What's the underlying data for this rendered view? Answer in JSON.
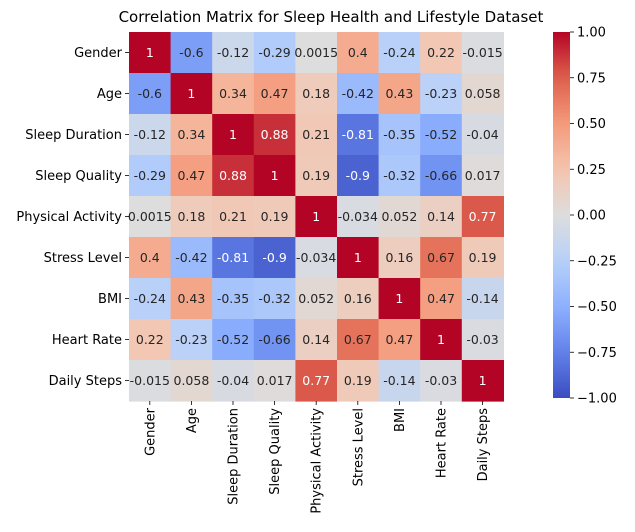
{
  "chart_data": {
    "type": "heatmap",
    "title": "Correlation Matrix for Sleep Health and Lifestyle Dataset",
    "labels": [
      "Gender",
      "Age",
      "Sleep Duration",
      "Sleep Quality",
      "Physical Activity",
      "Stress Level",
      "BMI",
      "Heart Rate",
      "Daily Steps"
    ],
    "values": [
      [
        1,
        -0.6,
        -0.12,
        -0.29,
        0.0015,
        0.4,
        -0.24,
        0.22,
        -0.015
      ],
      [
        -0.6,
        1,
        0.34,
        0.47,
        0.18,
        -0.42,
        0.43,
        -0.23,
        0.058
      ],
      [
        -0.12,
        0.34,
        1,
        0.88,
        0.21,
        -0.81,
        -0.35,
        -0.52,
        -0.04
      ],
      [
        -0.29,
        0.47,
        0.88,
        1,
        0.19,
        -0.9,
        -0.32,
        -0.66,
        0.017
      ],
      [
        0.0015,
        0.18,
        0.21,
        0.19,
        1,
        -0.034,
        0.052,
        0.14,
        0.77
      ],
      [
        0.4,
        -0.42,
        -0.81,
        -0.9,
        -0.034,
        1,
        0.16,
        0.67,
        0.19
      ],
      [
        -0.24,
        0.43,
        -0.35,
        -0.32,
        0.052,
        0.16,
        1,
        0.47,
        -0.14
      ],
      [
        0.22,
        -0.23,
        -0.52,
        -0.66,
        0.14,
        0.67,
        0.47,
        1,
        -0.03
      ],
      [
        -0.015,
        0.058,
        -0.04,
        0.017,
        0.77,
        0.19,
        -0.14,
        -0.03,
        1
      ]
    ],
    "annotations": [
      [
        "1",
        "-0.6",
        "-0.12",
        "-0.29",
        "0.0015",
        "0.4",
        "-0.24",
        "0.22",
        "-0.015"
      ],
      [
        "-0.6",
        "1",
        "0.34",
        "0.47",
        "0.18",
        "-0.42",
        "0.43",
        "-0.23",
        "0.058"
      ],
      [
        "-0.12",
        "0.34",
        "1",
        "0.88",
        "0.21",
        "-0.81",
        "-0.35",
        "-0.52",
        "-0.04"
      ],
      [
        "-0.29",
        "0.47",
        "0.88",
        "1",
        "0.19",
        "-0.9",
        "-0.32",
        "-0.66",
        "0.017"
      ],
      [
        "0.0015",
        "0.18",
        "0.21",
        "0.19",
        "1",
        "-0.034",
        "0.052",
        "0.14",
        "0.77"
      ],
      [
        "0.4",
        "-0.42",
        "-0.81",
        "-0.9",
        "-0.034",
        "1",
        "0.16",
        "0.67",
        "0.19"
      ],
      [
        "-0.24",
        "0.43",
        "-0.35",
        "-0.32",
        "0.052",
        "0.16",
        "1",
        "0.47",
        "-0.14"
      ],
      [
        "0.22",
        "-0.23",
        "-0.52",
        "-0.66",
        "0.14",
        "0.67",
        "0.47",
        "1",
        "-0.03"
      ],
      [
        "-0.015",
        "0.058",
        "-0.04",
        "0.017",
        "0.77",
        "0.19",
        "-0.14",
        "-0.03",
        "1"
      ]
    ],
    "colormap": "coolwarm",
    "vmin": -1.0,
    "vmax": 1.0,
    "colorbar_ticks": [
      1.0,
      0.75,
      0.5,
      0.25,
      0.0,
      -0.25,
      -0.5,
      -0.75,
      -1.0
    ],
    "colorbar_tick_labels": [
      "1.00",
      "0.75",
      "0.50",
      "0.25",
      "0.00",
      "−0.25",
      "−0.50",
      "−0.75",
      "−1.00"
    ],
    "colorbar_position": "right"
  }
}
